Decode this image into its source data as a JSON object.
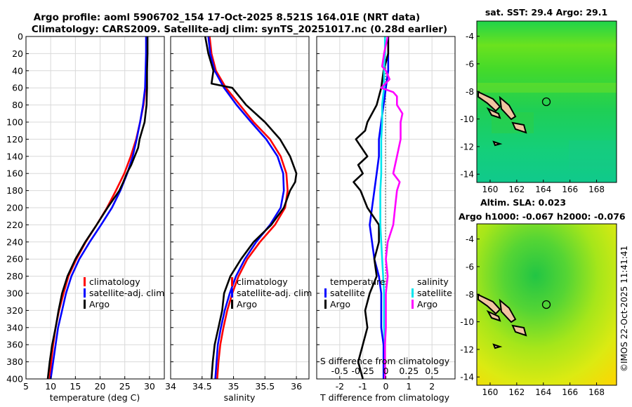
{
  "title_line1": "Argo profile: aoml 5906702_154 17-Oct-2025 8.521S 164.01E (NRT data)",
  "title_line2": "Climatology: CARS2009. Satellite-adj clim: synTS_20251017.nc (0.28d earlier)",
  "watermark": "©IMOS 22-Oct-2025 11:41:41",
  "colors": {
    "clim": "#ff0000",
    "sat": "#0000ff",
    "argo": "#000000",
    "sal_sat": "#00e5ee",
    "sal_argo": "#ff00ff",
    "grid": "#d9d9d9"
  },
  "chart_data": [
    {
      "type": "line",
      "id": "temperature",
      "xlabel": "temperature (deg C)",
      "xlim": [
        5,
        33
      ],
      "ylim": [
        0,
        400
      ],
      "xticks": [
        5,
        10,
        15,
        20,
        25,
        30
      ],
      "yticks": [
        0,
        20,
        40,
        60,
        80,
        100,
        120,
        140,
        160,
        180,
        200,
        220,
        240,
        260,
        280,
        300,
        320,
        340,
        360,
        380,
        400
      ],
      "legend": [
        "climatology",
        "satellite-adj. clim",
        "Argo"
      ],
      "series": [
        {
          "name": "climatology",
          "depth": [
            0,
            20,
            40,
            60,
            80,
            100,
            120,
            140,
            160,
            180,
            200,
            220,
            240,
            260,
            280,
            300,
            320,
            340,
            360,
            380,
            400
          ],
          "values": [
            29.5,
            29.5,
            29.4,
            29.2,
            28.8,
            28.1,
            27.3,
            26.2,
            24.9,
            23.2,
            21.4,
            19.3,
            17.1,
            15.2,
            13.6,
            12.6,
            11.7,
            11.0,
            10.5,
            10.1,
            9.8
          ]
        },
        {
          "name": "satellite-adj. clim",
          "depth": [
            0,
            20,
            40,
            60,
            80,
            100,
            120,
            140,
            160,
            180,
            200,
            220,
            240,
            260,
            280,
            300,
            320,
            340,
            360,
            380,
            400
          ],
          "values": [
            29.3,
            29.3,
            29.2,
            29.1,
            28.7,
            28.1,
            27.4,
            26.6,
            25.5,
            24.1,
            22.4,
            20.2,
            17.9,
            15.8,
            14.2,
            13.1,
            12.3,
            11.5,
            11.0,
            10.5,
            10.0
          ]
        },
        {
          "name": "Argo",
          "depth": [
            0,
            20,
            40,
            60,
            80,
            100,
            110,
            120,
            130,
            140,
            150,
            160,
            170,
            180,
            200,
            220,
            240,
            260,
            280,
            300,
            320,
            340,
            360,
            380,
            400
          ],
          "values": [
            29.6,
            29.6,
            29.5,
            29.5,
            29.4,
            29.0,
            28.5,
            28.0,
            27.7,
            27.0,
            26.3,
            25.4,
            24.7,
            23.9,
            21.5,
            19.3,
            17.0,
            15.0,
            13.4,
            12.3,
            11.6,
            11.0,
            10.3,
            9.8,
            9.4
          ]
        }
      ]
    },
    {
      "type": "line",
      "id": "salinity",
      "xlabel": "salinity",
      "xlim": [
        34,
        36.2
      ],
      "ylim": [
        0,
        400
      ],
      "xticks": [
        34,
        34.5,
        35,
        35.5,
        36
      ],
      "legend": [
        "climatology",
        "satellite-adj. clim",
        "Argo"
      ],
      "series": [
        {
          "name": "climatology",
          "depth": [
            0,
            20,
            40,
            60,
            80,
            100,
            120,
            140,
            160,
            180,
            200,
            220,
            240,
            260,
            280,
            300,
            320,
            340,
            360,
            380,
            400
          ],
          "values": [
            34.62,
            34.65,
            34.72,
            34.88,
            35.1,
            35.32,
            35.58,
            35.75,
            35.84,
            35.86,
            35.82,
            35.66,
            35.42,
            35.22,
            35.08,
            34.98,
            34.9,
            34.84,
            34.79,
            34.76,
            34.74
          ]
        },
        {
          "name": "satellite-adj. clim",
          "depth": [
            0,
            20,
            40,
            60,
            80,
            100,
            120,
            140,
            160,
            180,
            200,
            220,
            240,
            260,
            280,
            300,
            320,
            340,
            360,
            380,
            400
          ],
          "values": [
            34.6,
            34.63,
            34.7,
            34.85,
            35.05,
            35.28,
            35.52,
            35.7,
            35.79,
            35.8,
            35.75,
            35.58,
            35.36,
            35.18,
            35.04,
            34.94,
            34.86,
            34.8,
            34.75,
            34.73,
            34.71
          ]
        },
        {
          "name": "Argo",
          "depth": [
            0,
            20,
            40,
            55,
            60,
            80,
            100,
            120,
            140,
            160,
            170,
            180,
            200,
            220,
            240,
            260,
            280,
            300,
            320,
            340,
            360,
            380,
            400
          ],
          "values": [
            34.55,
            34.6,
            34.68,
            34.65,
            34.98,
            35.2,
            35.5,
            35.74,
            35.9,
            36.0,
            35.98,
            35.9,
            35.8,
            35.6,
            35.32,
            35.12,
            34.95,
            34.85,
            34.82,
            34.76,
            34.7,
            34.67,
            34.65
          ]
        }
      ]
    },
    {
      "type": "line",
      "id": "differences",
      "xlabel": "T difference from climatology",
      "xlabel_top": "S difference from climatology",
      "xlim": [
        -3,
        3
      ],
      "ylim": [
        0,
        400
      ],
      "xticks": [
        -2,
        -1,
        0,
        1,
        2
      ],
      "xticks_top": [
        "-0.5",
        "-0.25",
        "0",
        "0.25",
        "0.5"
      ],
      "legend_left_title": "temperature",
      "legend_right_title": "salinity",
      "legend_left": [
        "satellite",
        "Argo"
      ],
      "legend_right": [
        "satellite",
        "Argo"
      ],
      "series": [
        {
          "name": "T satellite",
          "depth": [
            0,
            20,
            40,
            60,
            80,
            100,
            120,
            140,
            160,
            180,
            200,
            220,
            240,
            260,
            280,
            300,
            320,
            340,
            360,
            380,
            400
          ],
          "values": [
            0.1,
            0.1,
            0.1,
            0.0,
            -0.1,
            -0.2,
            -0.3,
            -0.3,
            -0.4,
            -0.5,
            -0.6,
            -0.7,
            -0.6,
            -0.5,
            -0.3,
            -0.2,
            -0.2,
            -0.2,
            -0.1,
            -0.1,
            -0.1
          ]
        },
        {
          "name": "T Argo",
          "depth": [
            0,
            20,
            40,
            60,
            80,
            100,
            110,
            120,
            140,
            150,
            160,
            170,
            180,
            200,
            220,
            240,
            260,
            280,
            300,
            320,
            340,
            360,
            380,
            400
          ],
          "values": [
            0.1,
            0.1,
            -0.1,
            -0.2,
            -0.4,
            -0.8,
            -0.9,
            -1.3,
            -0.8,
            -1.2,
            -1.0,
            -1.4,
            -1.1,
            -0.8,
            -0.3,
            -0.3,
            -0.5,
            -0.4,
            -0.7,
            -0.9,
            -0.8,
            -1.0,
            -1.2,
            -1.0
          ]
        },
        {
          "name": "S satellite",
          "depth": [
            0,
            20,
            40,
            60,
            80,
            100,
            120,
            140,
            160,
            180,
            200,
            220,
            240,
            260,
            280,
            300,
            320,
            340,
            360,
            380,
            400
          ],
          "values": [
            -0.01,
            -0.01,
            -0.02,
            -0.02,
            -0.04,
            -0.04,
            -0.05,
            -0.05,
            -0.05,
            -0.06,
            -0.06,
            -0.06,
            -0.05,
            -0.04,
            -0.03,
            -0.02,
            -0.02,
            -0.02,
            -0.01,
            -0.01,
            -0.01
          ]
        },
        {
          "name": "S Argo",
          "depth": [
            0,
            20,
            35,
            40,
            50,
            60,
            65,
            70,
            80,
            90,
            100,
            120,
            140,
            160,
            170,
            180,
            200,
            220,
            240,
            260,
            280,
            300,
            320,
            340,
            360,
            380,
            400
          ],
          "values": [
            0.02,
            -0.02,
            -0.04,
            0.0,
            0.04,
            -0.05,
            0.08,
            0.12,
            0.12,
            0.18,
            0.16,
            0.16,
            0.12,
            0.08,
            0.15,
            0.12,
            0.1,
            0.08,
            0.02,
            0.0,
            0.02,
            0.0,
            0.0,
            0.0,
            -0.01,
            -0.01,
            -0.01
          ]
        }
      ]
    },
    {
      "type": "heatmap",
      "id": "sst-map",
      "title": "sat. SST: 29.4 Argo: 29.1",
      "xlim": [
        159,
        169.5
      ],
      "ylim": [
        -14.6,
        -2.9
      ],
      "xticks": [
        160,
        162,
        164,
        166,
        168
      ],
      "yticks": [
        -4,
        -6,
        -8,
        -10,
        -12,
        -14
      ],
      "argo_position": [
        164.01,
        -8.521
      ]
    },
    {
      "type": "heatmap",
      "id": "sla-map",
      "title_line1": "Altim. SLA: 0.023",
      "title_line2": "Argo h1000: -0.067 h2000: -0.076",
      "xlim": [
        159,
        169.5
      ],
      "ylim": [
        -14.6,
        -2.9
      ],
      "xticks": [
        160,
        162,
        164,
        166,
        168
      ],
      "yticks": [
        -4,
        -6,
        -8,
        -10,
        -12,
        -14
      ],
      "argo_position": [
        164.01,
        -8.521
      ]
    }
  ]
}
